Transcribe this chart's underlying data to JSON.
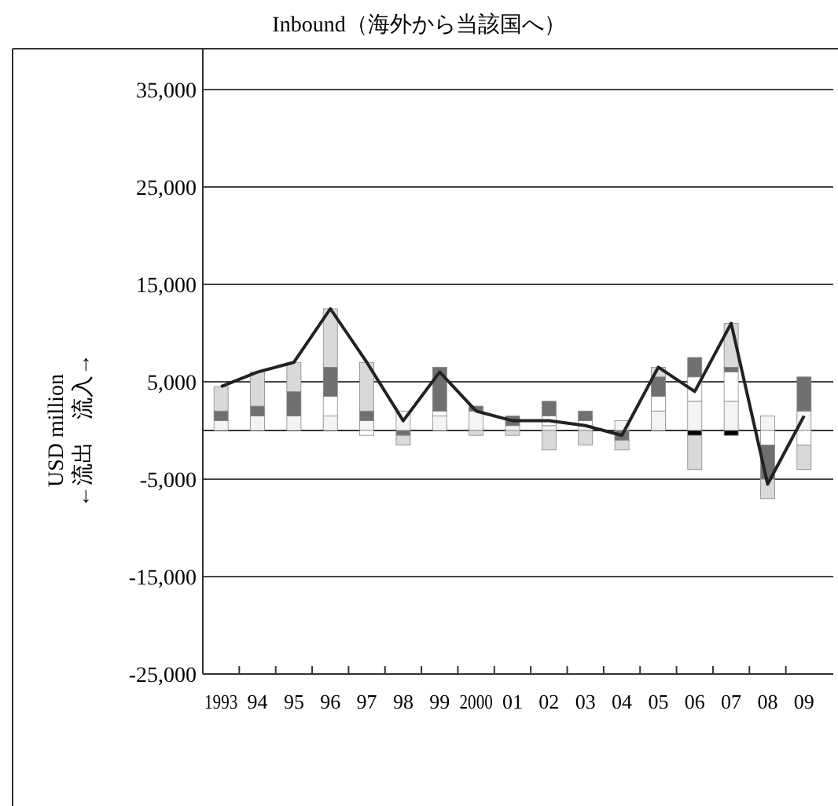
{
  "chart_data": {
    "type": "bar",
    "stacked": true,
    "title": "Inbound（海外から当該国へ）",
    "ylabel": "USD million\n←流出　流入→",
    "categories": [
      "1993",
      "94",
      "95",
      "96",
      "97",
      "98",
      "99",
      "2000",
      "01",
      "02",
      "03",
      "04",
      "05",
      "06",
      "07",
      "08",
      "09"
    ],
    "ylim": [
      -25000,
      35000
    ],
    "yticks": [
      {
        "value": 35000,
        "label": "35,000"
      },
      {
        "value": 25000,
        "label": "25,000"
      },
      {
        "value": 15000,
        "label": "15,000"
      },
      {
        "value": 5000,
        "label": "5,000"
      },
      {
        "value": -5000,
        "label": "-5,000"
      },
      {
        "value": -15000,
        "label": "-15,000"
      },
      {
        "value": -25000,
        "label": "-25,000"
      }
    ],
    "grid": "y",
    "marker": "none",
    "line_style": "solid",
    "series": [
      {
        "color": "#f4f4f4",
        "values": [
          1000,
          1500,
          1500,
          1500,
          1000,
          2000,
          1500,
          2000,
          500,
          500,
          500,
          1000,
          2000,
          3000,
          3000,
          1500,
          2000
        ]
      },
      {
        "color": "#ffffff",
        "values": [
          null,
          null,
          null,
          2000,
          -500,
          null,
          500,
          null,
          null,
          1000,
          500,
          null,
          1500,
          2500,
          3000,
          -1500,
          -1500
        ]
      },
      {
        "color": "#000000",
        "values": [
          null,
          null,
          null,
          null,
          null,
          null,
          null,
          null,
          null,
          null,
          null,
          null,
          null,
          -500,
          -500,
          null,
          null
        ]
      },
      {
        "color": "#707070",
        "values": [
          1000,
          1000,
          2500,
          3000,
          1000,
          -500,
          4500,
          500,
          1000,
          1500,
          1000,
          -1000,
          2000,
          2000,
          500,
          -3500,
          3500
        ]
      },
      {
        "color": "#d9d9d9",
        "values": [
          2500,
          3500,
          3000,
          6000,
          5000,
          -1000,
          null,
          -500,
          -500,
          -2000,
          -1500,
          -1000,
          1000,
          -3500,
          4500,
          -2000,
          -2500
        ]
      },
      {
        "type": "line",
        "color": "#222222",
        "values": [
          4500,
          6000,
          7000,
          12500,
          7000,
          1000,
          6000,
          2000,
          1000,
          1000,
          500,
          -500,
          6500,
          4000,
          11000,
          -5500,
          1500
        ]
      }
    ]
  }
}
